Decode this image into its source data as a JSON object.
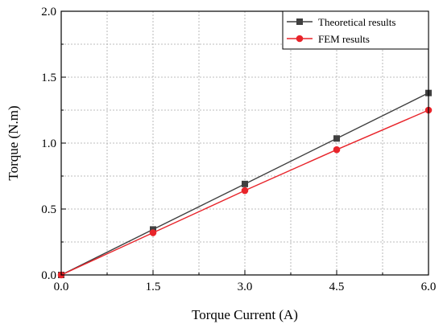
{
  "chart_data": {
    "type": "line",
    "xlabel": "Torque Current (A)",
    "ylabel": "Torque (N.m)",
    "xlim": [
      0.0,
      6.0
    ],
    "ylim": [
      0.0,
      2.0
    ],
    "x_ticks": [
      "0.0",
      "1.5",
      "3.0",
      "4.5",
      "6.0"
    ],
    "y_ticks": [
      "0.0",
      "0.5",
      "1.0",
      "1.5",
      "2.0"
    ],
    "x_tick_values": [
      0.0,
      1.5,
      3.0,
      4.5,
      6.0
    ],
    "y_tick_values": [
      0.0,
      0.5,
      1.0,
      1.5,
      2.0
    ],
    "grid": true,
    "legend_position": "top-right",
    "x": [
      0.0,
      1.5,
      3.0,
      4.5,
      6.0
    ],
    "series": [
      {
        "name": "Theoretical results",
        "values": [
          0.0,
          0.345,
          0.69,
          1.035,
          1.38
        ],
        "color": "#404040",
        "marker": "square"
      },
      {
        "name": "FEM results",
        "values": [
          0.0,
          0.32,
          0.64,
          0.95,
          1.25
        ],
        "color": "#e8242a",
        "marker": "circle"
      }
    ]
  }
}
